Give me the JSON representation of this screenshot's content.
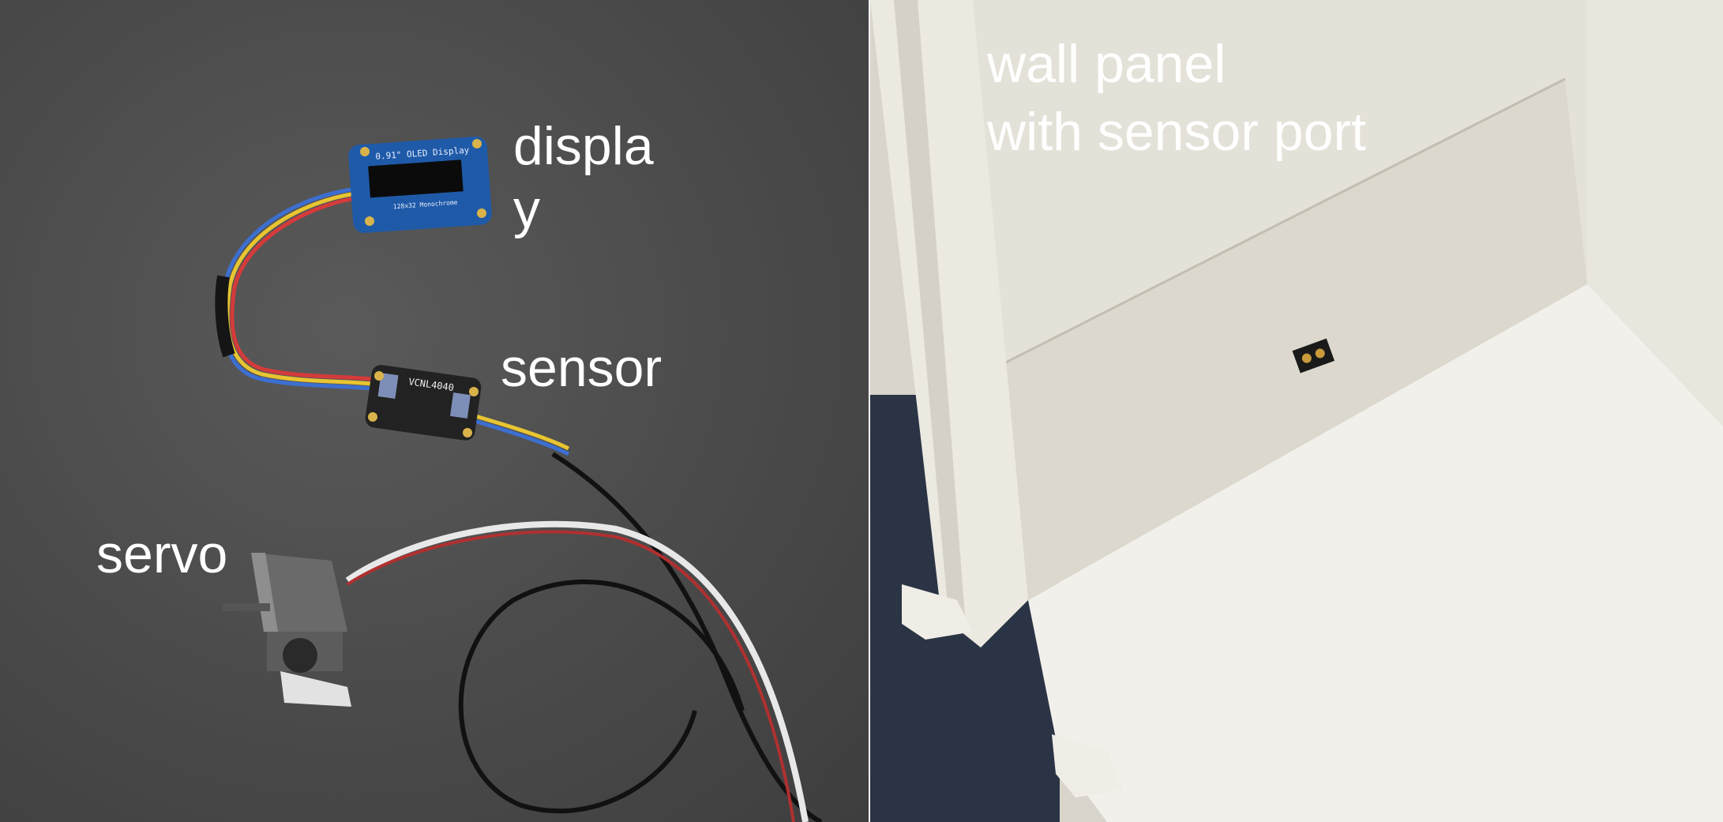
{
  "left_photo": {
    "labels": {
      "display_line1": "displa",
      "display_line2": "y",
      "sensor": "sensor",
      "servo": "servo"
    },
    "board_text": {
      "oled_title": "0.91\" OLED Display",
      "oled_subtitle": "128x32 Monochrome",
      "sensor_chip": "VCNL4040"
    }
  },
  "right_photo": {
    "label_line1": "wall panel",
    "label_line2": "with sensor port"
  },
  "colors": {
    "mat": "#4a4a4a",
    "board_blue": "#1f5aa8",
    "board_black": "#222222",
    "wall": "#e4e1d8",
    "floor": "#f1f0eb",
    "label_text": "#ffffff"
  }
}
